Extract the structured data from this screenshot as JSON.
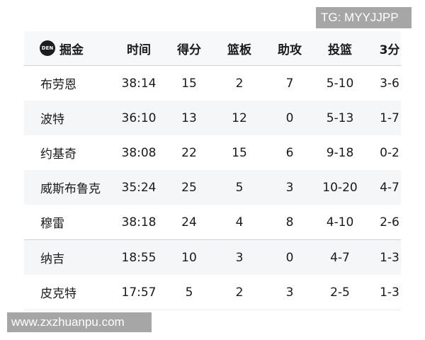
{
  "watermarks": {
    "top": "TG: MYYJJPP",
    "bottom": "www.zxzhuanpu.com"
  },
  "team": {
    "logo_text": "DEN",
    "name": "掘金"
  },
  "columns": [
    "时间",
    "得分",
    "篮板",
    "助攻",
    "投篮",
    "3分"
  ],
  "rows": [
    {
      "name": "布劳恩",
      "min": "38:14",
      "pts": "15",
      "reb": "2",
      "ast": "7",
      "fg": "5-10",
      "tp": "3-6"
    },
    {
      "name": "波特",
      "min": "36:10",
      "pts": "13",
      "reb": "12",
      "ast": "0",
      "fg": "5-13",
      "tp": "1-7"
    },
    {
      "name": "约基奇",
      "min": "38:08",
      "pts": "22",
      "reb": "15",
      "ast": "6",
      "fg": "9-18",
      "tp": "0-2"
    },
    {
      "name": "威斯布鲁克",
      "min": "35:24",
      "pts": "25",
      "reb": "5",
      "ast": "3",
      "fg": "10-20",
      "tp": "4-7"
    },
    {
      "name": "穆雷",
      "min": "38:18",
      "pts": "24",
      "reb": "4",
      "ast": "8",
      "fg": "4-10",
      "tp": "2-6"
    },
    {
      "name": "纳吉",
      "min": "18:55",
      "pts": "10",
      "reb": "3",
      "ast": "0",
      "fg": "4-7",
      "tp": "1-3"
    },
    {
      "name": "皮克特",
      "min": "17:57",
      "pts": "5",
      "reb": "2",
      "ast": "3",
      "fg": "2-5",
      "tp": "1-3"
    }
  ]
}
